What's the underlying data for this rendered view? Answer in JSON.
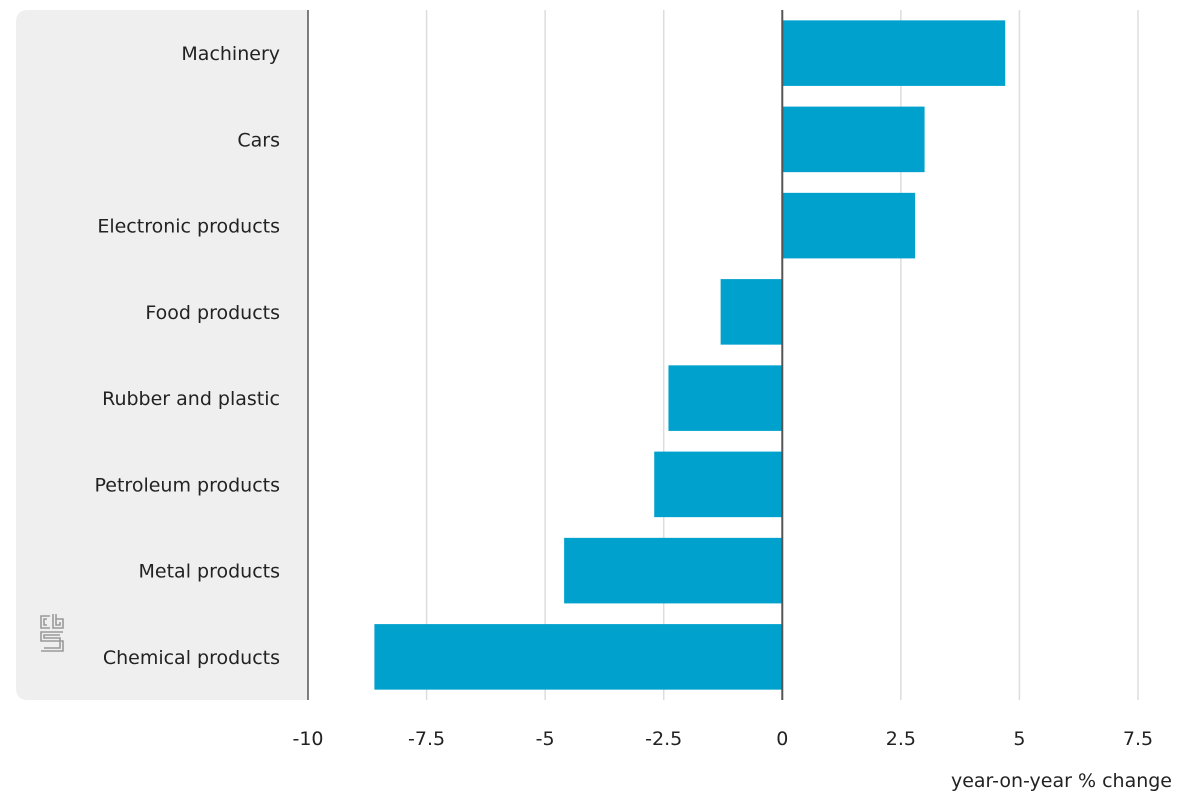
{
  "chart_data": {
    "type": "bar",
    "orientation": "horizontal",
    "categories": [
      "Machinery",
      "Cars",
      "Electronic products",
      "Food products",
      "Rubber and plastic",
      "Petroleum products",
      "Metal products",
      "Chemical products"
    ],
    "values": [
      4.7,
      3.0,
      2.8,
      -1.3,
      -2.4,
      -2.7,
      -4.6,
      -8.6
    ],
    "xlabel": "year-on-year % change",
    "xlim": [
      -10,
      7.5
    ],
    "xticks": [
      "-10",
      "-7.5",
      "-5",
      "-2.5",
      "0",
      "2.5",
      "5",
      "7.5"
    ],
    "grid": "vertical",
    "bar_color": "#00a1cd",
    "label_panel_color": "#efefef"
  },
  "logo": {
    "name": "cbs-logo",
    "text": "cbs"
  }
}
